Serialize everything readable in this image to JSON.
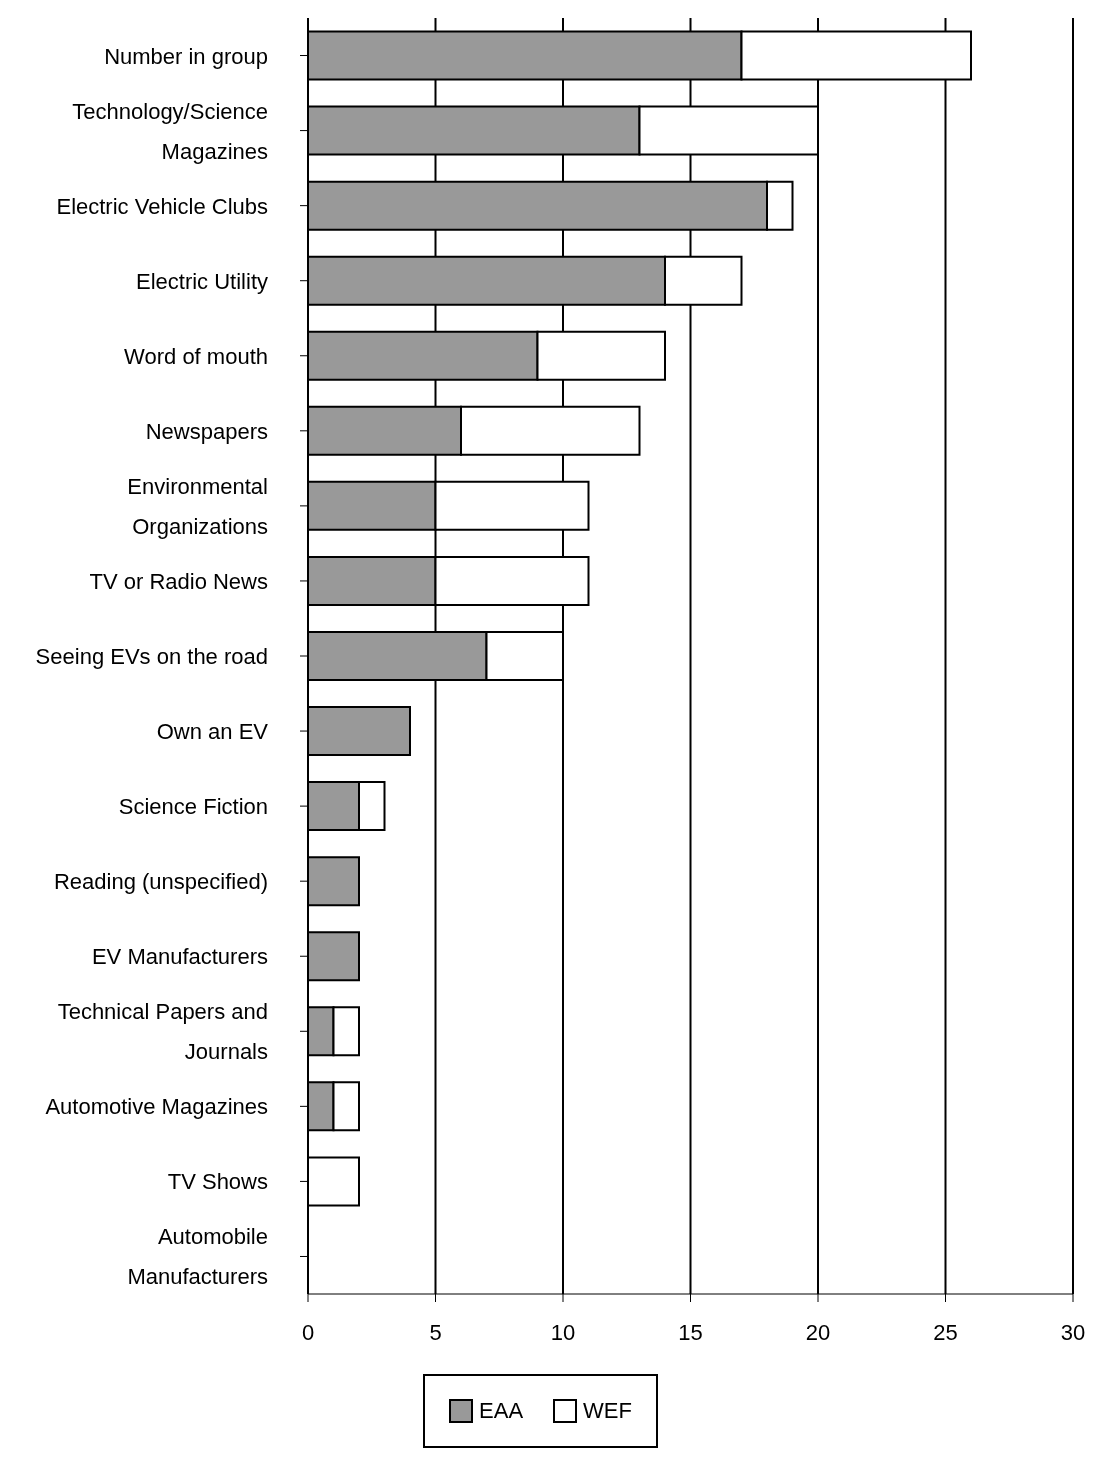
{
  "chart_data": {
    "type": "bar",
    "orientation": "horizontal",
    "stacked": true,
    "categories": [
      "Number in group",
      "Technology/Science Magazines",
      "Electric Vehicle Clubs",
      "Electric Utility",
      "Word of mouth",
      "Newspapers",
      "Environmental Organizations",
      "TV or Radio News",
      "Seeing EVs on the road",
      "Own an EV",
      "Science Fiction",
      "Reading (unspecified)",
      "EV Manufacturers",
      "Technical Papers and Journals",
      "Automotive Magazines",
      "TV Shows",
      "Automobile Manufacturers"
    ],
    "series": [
      {
        "name": "EAA",
        "color": "#999999",
        "values": [
          17,
          13,
          18,
          14,
          9,
          6,
          5,
          5,
          7,
          4,
          2,
          2,
          2,
          1,
          1,
          0,
          0
        ]
      },
      {
        "name": "WEF",
        "color": "#ffffff",
        "values": [
          9,
          7,
          1,
          3,
          5,
          7,
          6,
          6,
          3,
          0,
          1,
          0,
          0,
          1,
          1,
          2,
          0
        ]
      }
    ],
    "xlim": [
      0,
      30
    ],
    "xticks": [
      0,
      5,
      10,
      15,
      20,
      25,
      30
    ],
    "grid": "x",
    "legend": "bottom"
  }
}
